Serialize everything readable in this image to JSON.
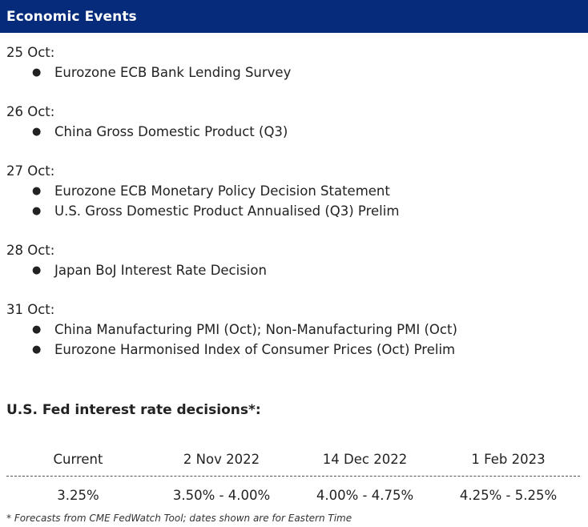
{
  "header": {
    "title": "Economic Events",
    "background_color": "#052b7a"
  },
  "events": [
    {
      "date": "25 Oct:",
      "items": [
        "Eurozone ECB Bank Lending Survey"
      ]
    },
    {
      "date": "26 Oct:",
      "items": [
        "China Gross Domestic Product (Q3)"
      ]
    },
    {
      "date": "27 Oct:",
      "items": [
        "Eurozone ECB Monetary Policy Decision Statement",
        "U.S. Gross Domestic Product Annualised (Q3) Prelim"
      ]
    },
    {
      "date": "28 Oct:",
      "items": [
        "Japan BoJ Interest Rate Decision"
      ]
    },
    {
      "date": "31 Oct:",
      "items": [
        "China Manufacturing PMI (Oct); Non-Manufacturing PMI (Oct)",
        "Eurozone Harmonised Index of Consumer Prices (Oct) Prelim"
      ]
    }
  ],
  "bullet_glyph": "●",
  "fed_section": {
    "heading": "U.S. Fed interest rate decisions*:",
    "columns": [
      "Current",
      "2 Nov 2022",
      "14 Dec 2022",
      "1 Feb 2023"
    ],
    "values": [
      "3.25%",
      "3.50% - 4.00%",
      "4.00% - 4.75%",
      "4.25% - 5.25%"
    ]
  },
  "footnote": "* Forecasts from CME FedWatch Tool; dates shown are for Eastern Time"
}
